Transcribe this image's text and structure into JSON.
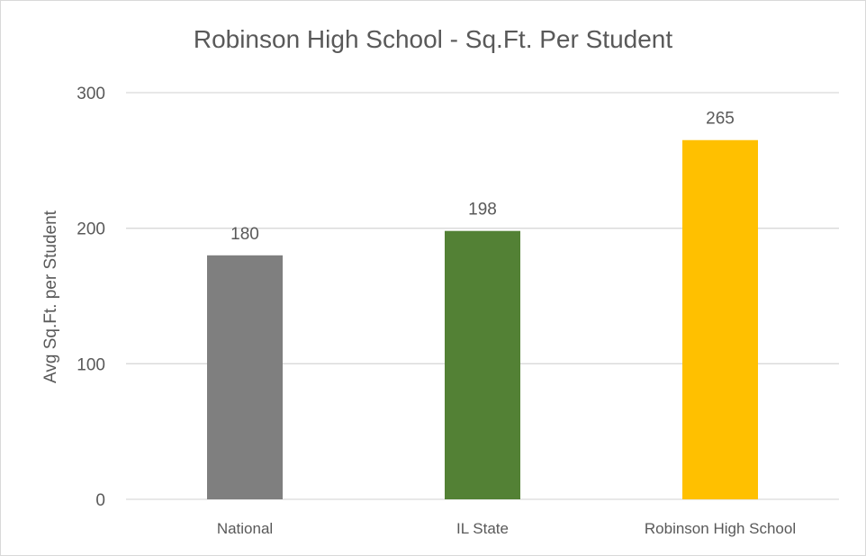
{
  "chart_data": {
    "type": "bar",
    "title": "Robinson High School - Sq.Ft. Per Student",
    "xlabel": "",
    "ylabel": "Avg Sq.Ft. per Student",
    "categories": [
      "National",
      "IL State",
      "Robinson High School"
    ],
    "values": [
      180,
      198,
      265
    ],
    "colors": [
      "#7f7f7f",
      "#538135",
      "#ffc000"
    ],
    "ylim": [
      0,
      300
    ],
    "yticks": [
      0,
      100,
      200,
      300
    ],
    "data_labels": true,
    "grid": true,
    "legend": "none"
  }
}
